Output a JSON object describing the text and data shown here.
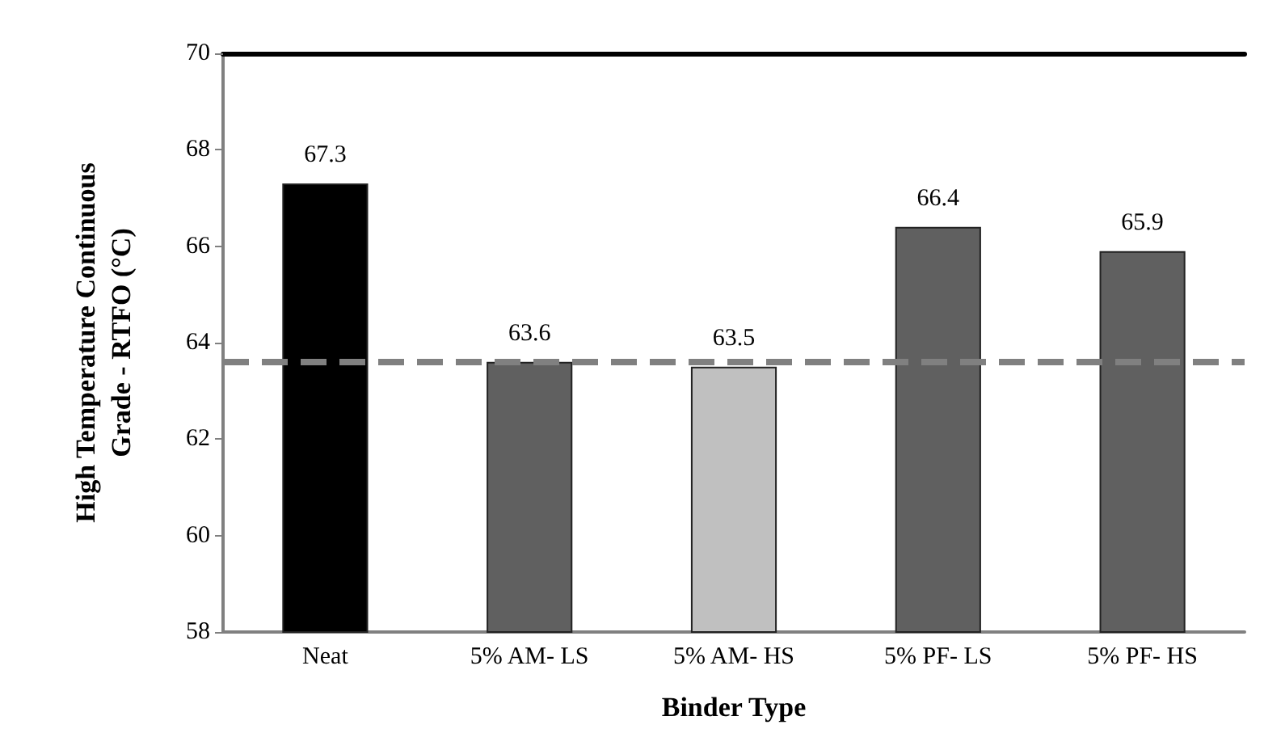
{
  "chart_data": {
    "type": "bar",
    "xlabel": "Binder Type",
    "ylabel": "High Temperature Continuous\nGrade - RTFO (°C)",
    "categories": [
      "Neat",
      "5% AM- LS",
      "5% AM- HS",
      "5% PF- LS",
      "5% PF- HS"
    ],
    "values": [
      67.3,
      63.6,
      63.5,
      66.4,
      65.9
    ],
    "colors": [
      "#000000",
      "#606060",
      "#c0c0c0",
      "#606060",
      "#606060"
    ],
    "ylim": [
      58,
      70
    ],
    "yticks": [
      58,
      60,
      62,
      64,
      66,
      68,
      70
    ],
    "grid": false,
    "data_labels": true,
    "ref_lines": [
      {
        "axis": "y",
        "value": 63.6,
        "color": "#808080",
        "line_style": "dashed"
      }
    ]
  }
}
